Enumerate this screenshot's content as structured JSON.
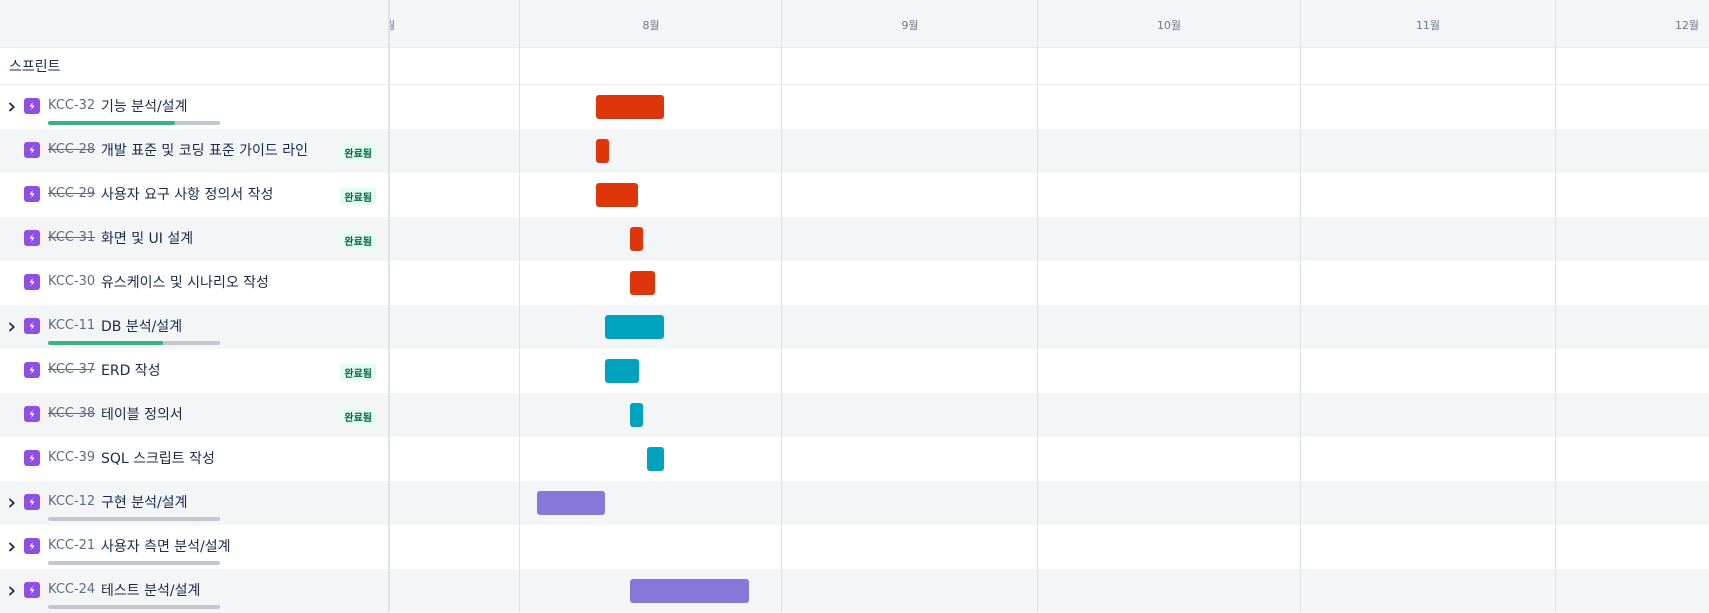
{
  "header": {
    "months": [
      "월",
      "8월",
      "9월",
      "10월",
      "11월",
      "12월"
    ]
  },
  "sprint_label": "스프린트",
  "colors": {
    "epic_red": "#de350b",
    "epic_teal": "#00a3bf",
    "epic_purple": "#8777d9",
    "progress_done": "#36b37e",
    "progress_rest": "#c1c7d0",
    "issue_type": "#904ee2",
    "badge_text": "#006644",
    "badge_bg": "#e3fcef"
  },
  "rows": [
    {
      "key": "KCC-32",
      "summary": "기능 분석/설계",
      "done": false,
      "status": "",
      "expandable": true,
      "progress": 0.74
    },
    {
      "key": "KCC-28",
      "summary": "개발 표준 및 코딩 표준 가이드 라인",
      "done": true,
      "status": "완료됨",
      "expandable": false
    },
    {
      "key": "KCC-29",
      "summary": "사용자 요구 사항 정의서 작성",
      "done": true,
      "status": "완료됨",
      "expandable": false
    },
    {
      "key": "KCC-31",
      "summary": "화면 및 UI 설계",
      "done": true,
      "status": "완료됨",
      "expandable": false
    },
    {
      "key": "KCC-30",
      "summary": "유스케이스 및 시나리오 작성",
      "done": false,
      "status": "",
      "expandable": false
    },
    {
      "key": "KCC-11",
      "summary": "DB 분석/설계",
      "done": false,
      "status": "",
      "expandable": true,
      "progress": 0.67
    },
    {
      "key": "KCC-37",
      "summary": "ERD 작성",
      "done": true,
      "status": "완료됨",
      "expandable": false
    },
    {
      "key": "KCC-38",
      "summary": "테이블 정의서",
      "done": true,
      "status": "완료됨",
      "expandable": false
    },
    {
      "key": "KCC-39",
      "summary": "SQL 스크립트 작성",
      "done": false,
      "status": "",
      "expandable": false
    },
    {
      "key": "KCC-12",
      "summary": "구현 분석/설계",
      "done": false,
      "status": "",
      "expandable": true,
      "progress": 0
    },
    {
      "key": "KCC-21",
      "summary": "사용자 측면 분석/설계",
      "done": false,
      "status": "",
      "expandable": true,
      "progress": 0
    },
    {
      "key": "KCC-24",
      "summary": "테스트 분석/설계",
      "done": false,
      "status": "",
      "expandable": true,
      "progress": 0
    }
  ]
}
